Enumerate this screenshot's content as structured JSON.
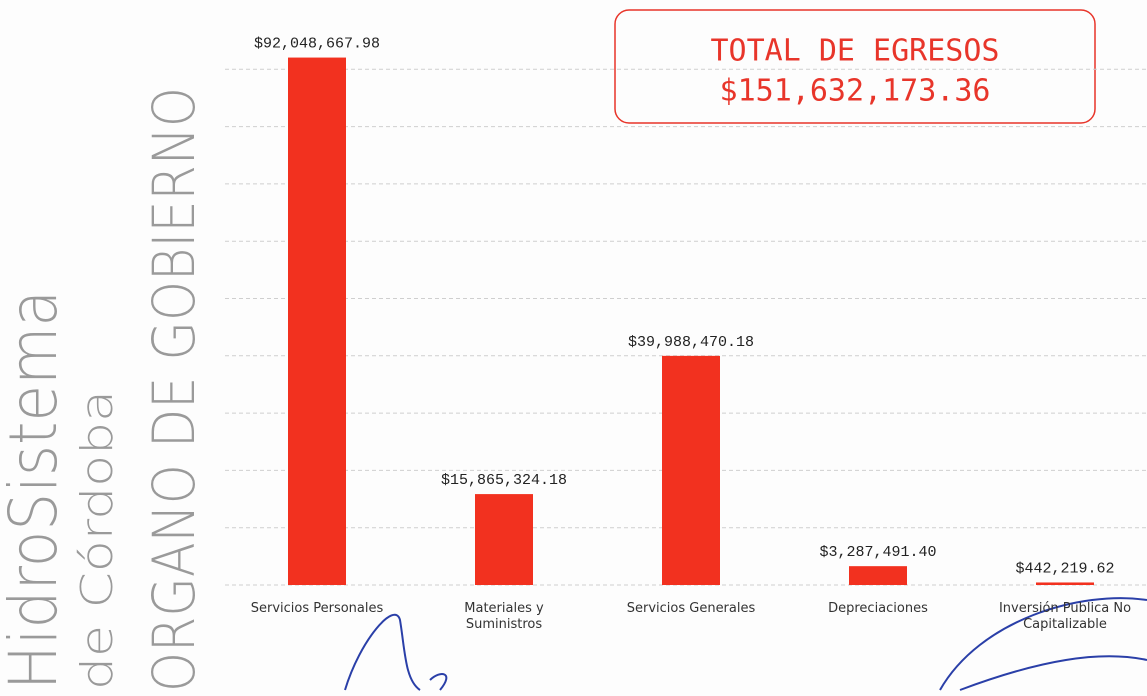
{
  "chart_data": {
    "type": "bar",
    "categories": [
      "Servicios Personales",
      "Materiales y Suministros",
      "Servicios Generales",
      "Depreciaciones",
      "Inversión Publica No Capitalizable"
    ],
    "values": [
      92048667.98,
      15865324.18,
      39988470.18,
      3287491.4,
      442219.62
    ],
    "value_labels": [
      "$92,048,667.98",
      "$15,865,324.18",
      "$39,988,470.18",
      "$3,287,491.40",
      "$442,219.62"
    ],
    "color": "#f2311f",
    "ylim": [
      0,
      100000000
    ],
    "yticks": [
      0,
      10000000,
      20000000,
      30000000,
      40000000,
      50000000,
      60000000,
      70000000,
      80000000,
      90000000
    ],
    "grid": true,
    "annotation": {
      "title": "TOTAL DE EGRESOS",
      "value": "$151,632,173.36"
    }
  },
  "logo": {
    "name": "HidroSistema",
    "place": "de Córdoba",
    "unit": "ORGANO DE GOBIERNO"
  }
}
